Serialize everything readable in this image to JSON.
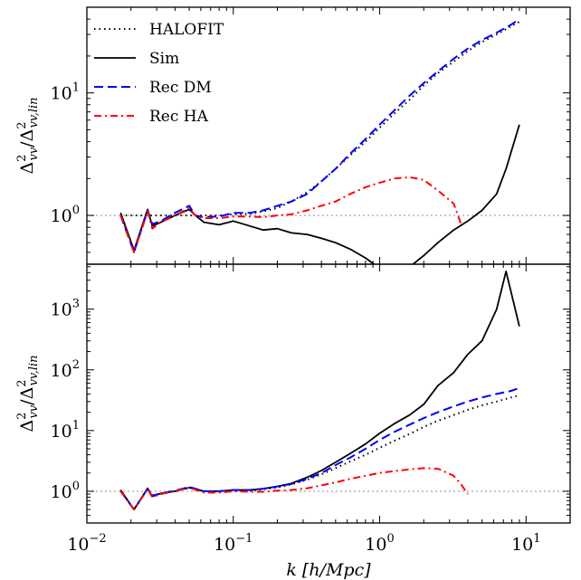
{
  "chart_data": [
    {
      "type": "line",
      "panel": "top",
      "xscale": "log",
      "yscale": "log",
      "xlim": [
        0.01,
        20
      ],
      "ylim": [
        0.4,
        50
      ],
      "ylabel": "Δ²vv/Δ²vv,lin",
      "ytick_values": [
        1,
        10
      ],
      "yticks": [
        {
          "base": "10",
          "exp": "0"
        },
        {
          "base": "10",
          "exp": "1"
        }
      ],
      "reference_line": 1,
      "legend": {
        "placement": "upper-left"
      },
      "series": [
        {
          "name": "HALOFIT",
          "style": "dotted",
          "color": "#000000",
          "points": [
            [
              0.017,
              1.0
            ],
            [
              0.021,
              1.0
            ],
            [
              0.026,
              1.0
            ],
            [
              0.032,
              1.0
            ],
            [
              0.04,
              1.0
            ],
            [
              0.05,
              1.0
            ],
            [
              0.063,
              1.0
            ],
            [
              0.08,
              1.0
            ],
            [
              0.1,
              1.02
            ],
            [
              0.13,
              1.03
            ],
            [
              0.16,
              1.08
            ],
            [
              0.2,
              1.15
            ],
            [
              0.25,
              1.3
            ],
            [
              0.32,
              1.55
            ],
            [
              0.4,
              1.9
            ],
            [
              0.5,
              2.4
            ],
            [
              0.63,
              3.1
            ],
            [
              0.8,
              4.0
            ],
            [
              1.0,
              5.2
            ],
            [
              1.26,
              6.8
            ],
            [
              1.6,
              8.8
            ],
            [
              2.0,
              11.5
            ],
            [
              2.5,
              14.5
            ],
            [
              3.2,
              18.0
            ],
            [
              4.0,
              22.0
            ],
            [
              5.0,
              26.0
            ],
            [
              6.3,
              30.0
            ],
            [
              7.9,
              35.0
            ],
            [
              9.0,
              38.0
            ]
          ]
        },
        {
          "name": "Sim",
          "style": "solid",
          "color": "#000000",
          "points": [
            [
              0.017,
              1.05
            ],
            [
              0.021,
              0.52
            ],
            [
              0.026,
              1.12
            ],
            [
              0.028,
              0.82
            ],
            [
              0.032,
              0.88
            ],
            [
              0.04,
              1.0
            ],
            [
              0.05,
              1.12
            ],
            [
              0.055,
              1.0
            ],
            [
              0.063,
              0.88
            ],
            [
              0.08,
              0.84
            ],
            [
              0.1,
              0.9
            ],
            [
              0.13,
              0.82
            ],
            [
              0.16,
              0.76
            ],
            [
              0.2,
              0.78
            ],
            [
              0.25,
              0.72
            ],
            [
              0.32,
              0.7
            ],
            [
              0.4,
              0.65
            ],
            [
              0.5,
              0.6
            ],
            [
              0.63,
              0.53
            ],
            [
              0.8,
              0.45
            ],
            [
              1.0,
              0.37
            ],
            [
              1.26,
              0.35
            ],
            [
              1.6,
              0.38
            ],
            [
              2.0,
              0.47
            ],
            [
              2.5,
              0.6
            ],
            [
              3.2,
              0.76
            ],
            [
              4.0,
              0.9
            ],
            [
              5.0,
              1.1
            ],
            [
              6.3,
              1.5
            ],
            [
              7.3,
              2.4
            ],
            [
              9.0,
              5.5
            ]
          ]
        },
        {
          "name": "Rec DM",
          "style": "dashed",
          "color": "#0000ff",
          "points": [
            [
              0.017,
              1.0
            ],
            [
              0.021,
              0.5
            ],
            [
              0.026,
              1.1
            ],
            [
              0.028,
              0.85
            ],
            [
              0.032,
              0.9
            ],
            [
              0.04,
              1.05
            ],
            [
              0.05,
              1.2
            ],
            [
              0.055,
              1.0
            ],
            [
              0.063,
              0.97
            ],
            [
              0.08,
              0.98
            ],
            [
              0.1,
              1.05
            ],
            [
              0.13,
              1.05
            ],
            [
              0.16,
              1.1
            ],
            [
              0.2,
              1.2
            ],
            [
              0.25,
              1.3
            ],
            [
              0.32,
              1.5
            ],
            [
              0.4,
              1.9
            ],
            [
              0.5,
              2.4
            ],
            [
              0.63,
              3.2
            ],
            [
              0.8,
              4.2
            ],
            [
              1.0,
              5.5
            ],
            [
              1.26,
              7.2
            ],
            [
              1.6,
              9.5
            ],
            [
              2.0,
              12.0
            ],
            [
              2.5,
              15.0
            ],
            [
              3.2,
              19.0
            ],
            [
              4.0,
              23.0
            ],
            [
              5.0,
              27.0
            ],
            [
              6.3,
              31.0
            ],
            [
              7.9,
              36.0
            ],
            [
              9.0,
              40.0
            ]
          ]
        },
        {
          "name": "Rec HA",
          "style": "dashdot",
          "color": "#ff0000",
          "points": [
            [
              0.017,
              1.0
            ],
            [
              0.021,
              0.5
            ],
            [
              0.026,
              1.08
            ],
            [
              0.028,
              0.78
            ],
            [
              0.032,
              0.88
            ],
            [
              0.04,
              1.0
            ],
            [
              0.05,
              1.15
            ],
            [
              0.055,
              1.0
            ],
            [
              0.063,
              0.95
            ],
            [
              0.08,
              0.95
            ],
            [
              0.1,
              0.98
            ],
            [
              0.13,
              0.98
            ],
            [
              0.16,
              0.97
            ],
            [
              0.2,
              1.0
            ],
            [
              0.25,
              1.02
            ],
            [
              0.32,
              1.1
            ],
            [
              0.4,
              1.2
            ],
            [
              0.5,
              1.3
            ],
            [
              0.63,
              1.5
            ],
            [
              0.8,
              1.7
            ],
            [
              1.0,
              1.85
            ],
            [
              1.26,
              2.0
            ],
            [
              1.6,
              2.05
            ],
            [
              2.0,
              1.95
            ],
            [
              2.5,
              1.6
            ],
            [
              3.2,
              1.25
            ],
            [
              3.6,
              0.85
            ]
          ]
        }
      ]
    },
    {
      "type": "line",
      "panel": "bottom",
      "xscale": "log",
      "yscale": "log",
      "xlim": [
        0.01,
        20
      ],
      "ylim": [
        0.3,
        5500
      ],
      "xlabel": "k [h/Mpc]",
      "ylabel": "Δ²vv/Δ²vv,lin",
      "xtick_values": [
        0.01,
        0.1,
        1,
        10
      ],
      "xticks": [
        {
          "base": "10",
          "exp": "−2"
        },
        {
          "base": "10",
          "exp": "−1"
        },
        {
          "base": "10",
          "exp": "0"
        },
        {
          "base": "10",
          "exp": "1"
        }
      ],
      "ytick_values": [
        1,
        10,
        100,
        1000
      ],
      "yticks": [
        {
          "base": "10",
          "exp": "0"
        },
        {
          "base": "10",
          "exp": "1"
        },
        {
          "base": "10",
          "exp": "2"
        },
        {
          "base": "10",
          "exp": "3"
        }
      ],
      "reference_line": 1,
      "series": [
        {
          "name": "HALOFIT",
          "style": "dotted",
          "color": "#000000",
          "points": [
            [
              0.017,
              1.0
            ],
            [
              0.021,
              0.5
            ],
            [
              0.026,
              1.1
            ],
            [
              0.028,
              0.85
            ],
            [
              0.032,
              0.92
            ],
            [
              0.04,
              1.0
            ],
            [
              0.05,
              1.15
            ],
            [
              0.063,
              1.0
            ],
            [
              0.08,
              1.0
            ],
            [
              0.1,
              1.02
            ],
            [
              0.13,
              1.03
            ],
            [
              0.16,
              1.08
            ],
            [
              0.2,
              1.15
            ],
            [
              0.25,
              1.3
            ],
            [
              0.32,
              1.55
            ],
            [
              0.4,
              1.9
            ],
            [
              0.5,
              2.4
            ],
            [
              0.63,
              3.1
            ],
            [
              0.8,
              4.0
            ],
            [
              1.0,
              5.2
            ],
            [
              1.26,
              6.8
            ],
            [
              1.6,
              8.8
            ],
            [
              2.0,
              11.5
            ],
            [
              2.5,
              14.5
            ],
            [
              3.2,
              18.0
            ],
            [
              4.0,
              22.0
            ],
            [
              5.0,
              26.0
            ],
            [
              6.3,
              30.0
            ],
            [
              7.9,
              35.0
            ],
            [
              9.0,
              38.0
            ]
          ]
        },
        {
          "name": "Sim",
          "style": "solid",
          "color": "#000000",
          "points": [
            [
              0.017,
              1.05
            ],
            [
              0.021,
              0.5
            ],
            [
              0.026,
              1.12
            ],
            [
              0.028,
              0.82
            ],
            [
              0.032,
              0.92
            ],
            [
              0.04,
              1.0
            ],
            [
              0.05,
              1.15
            ],
            [
              0.063,
              1.0
            ],
            [
              0.08,
              1.0
            ],
            [
              0.1,
              1.05
            ],
            [
              0.13,
              1.05
            ],
            [
              0.16,
              1.1
            ],
            [
              0.2,
              1.2
            ],
            [
              0.25,
              1.35
            ],
            [
              0.32,
              1.7
            ],
            [
              0.4,
              2.2
            ],
            [
              0.5,
              3.0
            ],
            [
              0.63,
              4.2
            ],
            [
              0.8,
              6.0
            ],
            [
              1.0,
              9.0
            ],
            [
              1.26,
              13.0
            ],
            [
              1.6,
              18.0
            ],
            [
              2.0,
              27.0
            ],
            [
              2.5,
              55.0
            ],
            [
              3.2,
              90.0
            ],
            [
              4.0,
              180.0
            ],
            [
              5.0,
              300.0
            ],
            [
              6.3,
              1000.0
            ],
            [
              7.3,
              4200.0
            ],
            [
              9.0,
              520.0
            ]
          ]
        },
        {
          "name": "Rec DM",
          "style": "dashed",
          "color": "#0000ff",
          "points": [
            [
              0.017,
              1.0
            ],
            [
              0.021,
              0.5
            ],
            [
              0.026,
              1.1
            ],
            [
              0.028,
              0.85
            ],
            [
              0.032,
              0.92
            ],
            [
              0.04,
              1.02
            ],
            [
              0.05,
              1.18
            ],
            [
              0.063,
              1.0
            ],
            [
              0.08,
              1.0
            ],
            [
              0.1,
              1.05
            ],
            [
              0.13,
              1.05
            ],
            [
              0.16,
              1.1
            ],
            [
              0.2,
              1.2
            ],
            [
              0.25,
              1.32
            ],
            [
              0.32,
              1.6
            ],
            [
              0.4,
              2.0
            ],
            [
              0.5,
              2.7
            ],
            [
              0.63,
              3.6
            ],
            [
              0.8,
              5.0
            ],
            [
              1.0,
              7.0
            ],
            [
              1.26,
              9.5
            ],
            [
              1.6,
              12.5
            ],
            [
              2.0,
              16.0
            ],
            [
              2.5,
              20.0
            ],
            [
              3.2,
              25.0
            ],
            [
              4.0,
              30.0
            ],
            [
              5.0,
              35.0
            ],
            [
              6.3,
              40.0
            ],
            [
              7.9,
              45.0
            ],
            [
              9.0,
              50.0
            ]
          ]
        },
        {
          "name": "Rec HA",
          "style": "dashdot",
          "color": "#ff0000",
          "points": [
            [
              0.017,
              1.0
            ],
            [
              0.021,
              0.5
            ],
            [
              0.026,
              1.08
            ],
            [
              0.028,
              0.8
            ],
            [
              0.032,
              0.9
            ],
            [
              0.04,
              1.0
            ],
            [
              0.05,
              1.15
            ],
            [
              0.063,
              0.95
            ],
            [
              0.08,
              0.95
            ],
            [
              0.1,
              1.0
            ],
            [
              0.13,
              0.98
            ],
            [
              0.16,
              0.98
            ],
            [
              0.2,
              1.02
            ],
            [
              0.25,
              1.05
            ],
            [
              0.32,
              1.12
            ],
            [
              0.4,
              1.25
            ],
            [
              0.5,
              1.4
            ],
            [
              0.63,
              1.6
            ],
            [
              0.8,
              1.8
            ],
            [
              1.0,
              2.0
            ],
            [
              1.26,
              2.15
            ],
            [
              1.6,
              2.3
            ],
            [
              2.0,
              2.4
            ],
            [
              2.5,
              2.35
            ],
            [
              3.2,
              1.8
            ],
            [
              3.6,
              1.3
            ],
            [
              4.0,
              0.9
            ]
          ]
        }
      ]
    }
  ]
}
